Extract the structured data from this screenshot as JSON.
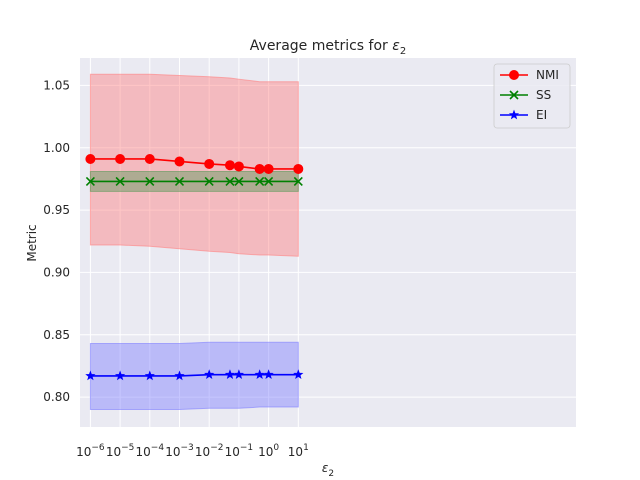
{
  "chart_data": {
    "type": "line",
    "title": "Average metrics for ε₂",
    "title_text": "Average metrics for ",
    "title_math": "ε",
    "title_sub": "2",
    "xlabel_math": "ε",
    "xlabel_sub": "2",
    "ylabel": "Metric",
    "x_scale": "log",
    "x": [
      1e-06,
      1e-05,
      0.0001,
      0.001,
      0.01,
      0.05,
      0.1,
      0.5,
      1,
      10
    ],
    "xlim_log10": [
      -6.35,
      10.35
    ],
    "ylim": [
      0.776,
      1.072
    ],
    "x_ticks": [
      {
        "exp": -6,
        "base": "10",
        "sup": "−6"
      },
      {
        "exp": -5,
        "base": "10",
        "sup": "−5"
      },
      {
        "exp": -4,
        "base": "10",
        "sup": "−4"
      },
      {
        "exp": -3,
        "base": "10",
        "sup": "−3"
      },
      {
        "exp": -2,
        "base": "10",
        "sup": "−2"
      },
      {
        "exp": -1,
        "base": "10",
        "sup": "−1"
      },
      {
        "exp": 0,
        "base": "10",
        "sup": "0"
      },
      {
        "exp": 1,
        "base": "10",
        "sup": "1"
      }
    ],
    "y_ticks": [
      0.8,
      0.85,
      0.9,
      0.95,
      1.0,
      1.05
    ],
    "y_tick_labels": [
      "0.80",
      "0.85",
      "0.90",
      "0.95",
      "1.00",
      "1.05"
    ],
    "grid": true,
    "legend_position": "top-right",
    "series": [
      {
        "name": "NMI",
        "color": "#ff0000",
        "band_color": "#ff8080",
        "marker": "circle",
        "values": [
          0.991,
          0.991,
          0.991,
          0.989,
          0.987,
          0.986,
          0.985,
          0.983,
          0.983,
          0.983
        ],
        "lower": [
          0.922,
          0.922,
          0.921,
          0.919,
          0.917,
          0.916,
          0.915,
          0.914,
          0.914,
          0.913
        ],
        "upper": [
          1.059,
          1.059,
          1.059,
          1.058,
          1.057,
          1.056,
          1.055,
          1.053,
          1.053,
          1.053
        ]
      },
      {
        "name": "SS",
        "color": "#008000",
        "band_color": "#5a9a5a",
        "marker": "x",
        "values": [
          0.973,
          0.973,
          0.973,
          0.973,
          0.973,
          0.973,
          0.973,
          0.973,
          0.973,
          0.973
        ],
        "lower": [
          0.965,
          0.965,
          0.965,
          0.965,
          0.965,
          0.965,
          0.965,
          0.965,
          0.965,
          0.965
        ],
        "upper": [
          0.981,
          0.981,
          0.981,
          0.981,
          0.981,
          0.981,
          0.981,
          0.981,
          0.981,
          0.981
        ]
      },
      {
        "name": "EI",
        "color": "#0000ff",
        "band_color": "#8080ff",
        "marker": "star",
        "values": [
          0.817,
          0.817,
          0.817,
          0.817,
          0.818,
          0.818,
          0.818,
          0.818,
          0.818,
          0.818
        ],
        "lower": [
          0.79,
          0.79,
          0.79,
          0.79,
          0.791,
          0.791,
          0.791,
          0.792,
          0.792,
          0.792
        ],
        "upper": [
          0.843,
          0.843,
          0.843,
          0.843,
          0.844,
          0.844,
          0.844,
          0.844,
          0.844,
          0.844
        ]
      }
    ]
  }
}
